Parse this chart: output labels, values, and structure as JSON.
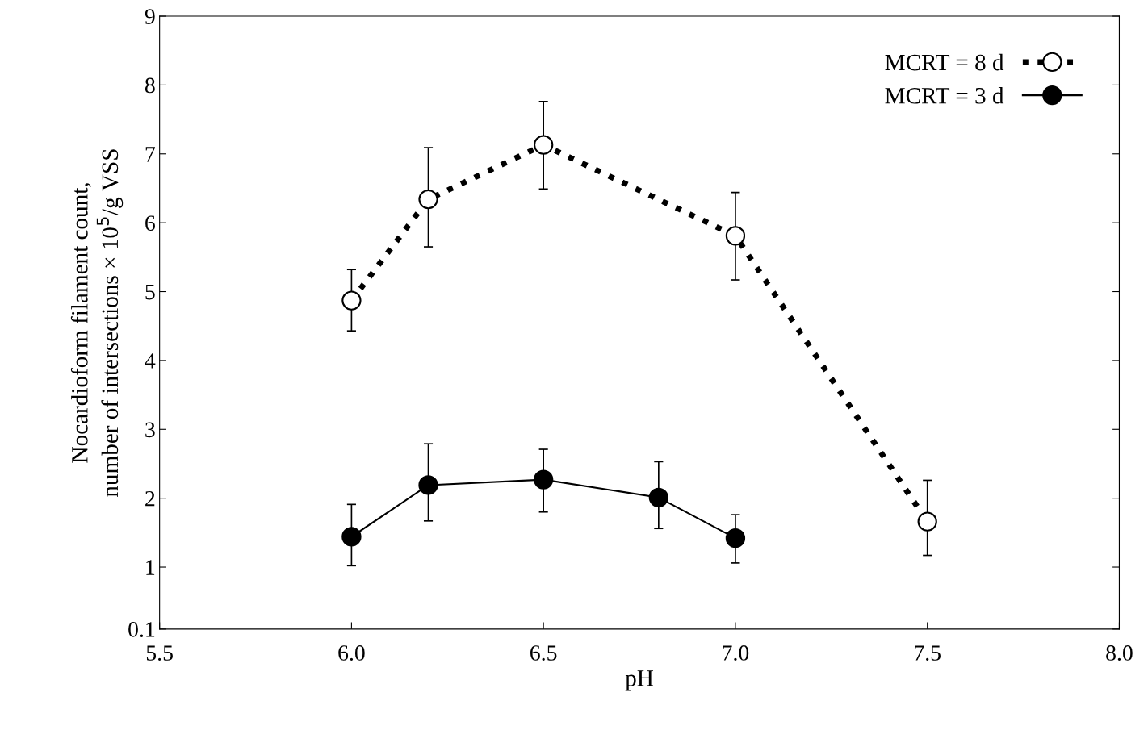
{
  "chart_data": {
    "type": "line",
    "xlabel": "pH",
    "ylabel": "Nocardioform filament count,\nnumber of intersections × 10$^{5}$/g VSS",
    "xlim": [
      5.5,
      8.0
    ],
    "xticks": [
      {
        "value": 5.5,
        "label": "5.5"
      },
      {
        "value": 6.0,
        "label": "6.0"
      },
      {
        "value": 6.5,
        "label": "6.5"
      },
      {
        "value": 7.0,
        "label": "7.0"
      },
      {
        "value": 7.5,
        "label": "7.5"
      },
      {
        "value": 8.0,
        "label": "8.0"
      }
    ],
    "ylim": [
      0.1,
      9
    ],
    "yticks": [
      0.1,
      1,
      2,
      3,
      4,
      5,
      6,
      7,
      8,
      9
    ],
    "legend": "top right",
    "grid": false,
    "series": [
      {
        "name": "MCRT = 8 d",
        "color": "#000000",
        "marker": "circle",
        "line_style": "dotted",
        "x": [
          6.0,
          6.2,
          6.5,
          7.0,
          7.5
        ],
        "values": [
          4.87,
          6.34,
          7.13,
          5.81,
          1.66
        ],
        "errors": [
          [
            4.43,
            5.32
          ],
          [
            5.65,
            7.09
          ],
          [
            6.49,
            7.76
          ],
          [
            5.17,
            6.44
          ],
          [
            1.17,
            2.26
          ]
        ]
      },
      {
        "name": "MCRT = 3 d",
        "color": "#000000",
        "marker": "circle",
        "line_style": "solid",
        "x": [
          6.0,
          6.2,
          6.5,
          6.8,
          7.0
        ],
        "values": [
          1.44,
          2.19,
          2.27,
          2.01,
          1.42
        ],
        "errors": [
          [
            1.02,
            1.91
          ],
          [
            1.67,
            2.79
          ],
          [
            1.8,
            2.71
          ],
          [
            1.56,
            2.53
          ],
          [
            1.06,
            1.76
          ]
        ]
      }
    ]
  }
}
